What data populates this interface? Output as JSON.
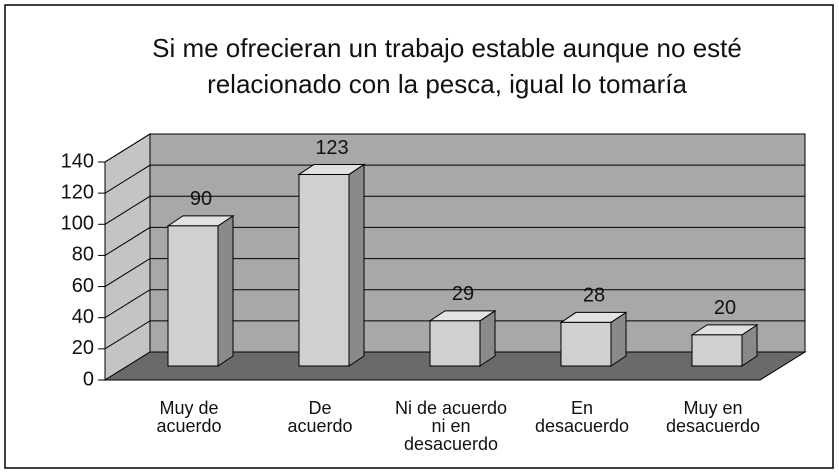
{
  "chart_data": {
    "type": "bar3d",
    "title": [
      "Si me ofrecieran un trabajo estable aunque no esté",
      "relacionado con la pesca, igual lo tomaría"
    ],
    "categories": [
      [
        "Muy de",
        "acuerdo"
      ],
      [
        "De",
        "acuerdo"
      ],
      [
        "Ni de acuerdo",
        "ni en",
        "desacuerdo"
      ],
      [
        "En",
        "desacuerdo"
      ],
      [
        "Muy en",
        "desacuerdo"
      ]
    ],
    "values": [
      90,
      123,
      29,
      28,
      20
    ],
    "color": "#d0d0d0",
    "ylim": [
      0,
      140
    ],
    "yticks": [
      0,
      20,
      40,
      60,
      80,
      100,
      120,
      140
    ],
    "grid": true
  }
}
